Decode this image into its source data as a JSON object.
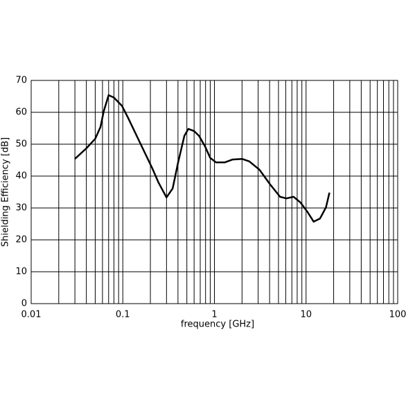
{
  "chart_data": {
    "type": "line",
    "x_label": "frequency [GHz]",
    "y_label": "Shielding Efficiency [dB]",
    "x_scale": "log",
    "xlim": [
      0.01,
      100
    ],
    "xticks": [
      0.01,
      0.1,
      1,
      10,
      100
    ],
    "x_minor_gridlines": [
      0.02,
      0.03,
      0.04,
      0.05,
      0.06,
      0.07,
      0.08,
      0.09,
      0.2,
      0.3,
      0.4,
      0.5,
      0.6,
      0.7,
      0.8,
      0.9,
      2,
      3,
      4,
      5,
      6,
      7,
      8,
      9,
      20,
      30,
      40,
      50,
      60,
      70,
      80,
      90
    ],
    "ylim": [
      0,
      70
    ],
    "yticks": [
      0,
      10,
      20,
      30,
      40,
      50,
      60,
      70
    ],
    "grid": true,
    "series": [
      {
        "color": "#000000",
        "x": [
          0.03,
          0.04,
          0.05,
          0.057,
          0.062,
          0.07,
          0.08,
          0.098,
          0.114,
          0.143,
          0.21,
          0.245,
          0.3,
          0.35,
          0.4,
          0.47,
          0.52,
          0.6,
          0.68,
          0.79,
          0.9,
          1.04,
          1.3,
          1.58,
          2.0,
          2.4,
          3.1,
          4.0,
          5.2,
          6.1,
          7.3,
          8.7,
          10.4,
          12.1,
          14.2,
          16.5,
          18
        ],
        "values": [
          45.4,
          48.7,
          51.7,
          55.4,
          60.4,
          65.4,
          64.6,
          62,
          58.3,
          52.4,
          42.4,
          38,
          33.3,
          36.1,
          44.1,
          52.6,
          54.8,
          54.1,
          52.6,
          49.3,
          45.7,
          44.3,
          44.3,
          45.2,
          45.4,
          44.6,
          42,
          37.6,
          33.5,
          33,
          33.5,
          31.7,
          28.7,
          25.7,
          26.7,
          30.2,
          34.8
        ]
      }
    ]
  }
}
